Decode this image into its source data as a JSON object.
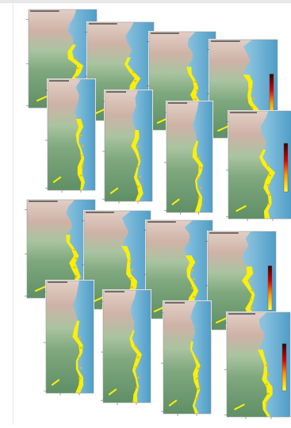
{
  "colors": {
    "land_dark": "#5f8f66",
    "land_mid": "#7fa87e",
    "land_light": "#a9c4a0",
    "land_pink": "#cfb2a6",
    "land_pink_light": "#e2cfc6",
    "sea_light": "#bcdcec",
    "sea_mid": "#86c0dd",
    "sea_deep": "#4f9dc7",
    "hotspot_yellow": "#fff200",
    "hotspot_orange": "#f5b800",
    "frame": "#9a9a9a",
    "tick_text": "#666666",
    "colorbar_top": "#3a0000",
    "colorbar_mid": "#d80000",
    "colorbar_low": "#ff9a00",
    "colorbar_bottom": "#ffff40"
  },
  "panel_icons": [
    "coast-map-thumbnail"
  ],
  "colorbar_icon": "heat-colorbar"
}
